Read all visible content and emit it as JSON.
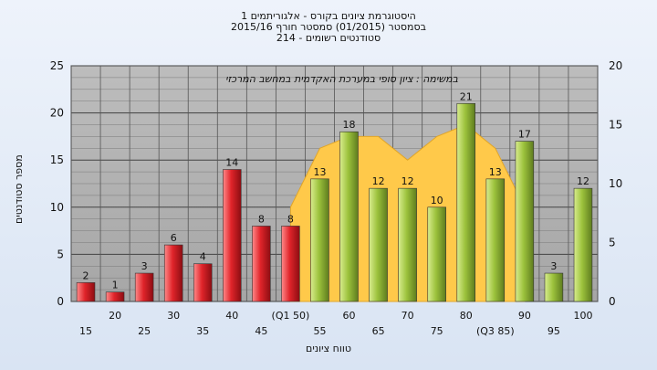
{
  "chart_data": {
    "type": "bar",
    "title_lines": [
      "היסטוגרמת ציונים בקורס - אלגוריתמים 1",
      "בסמסטר  (01/2015)  סמסטר חורף  2015/16",
      "סטודנטים רשומים - 214"
    ],
    "annotation": "במשימה : ציון סופי במערכת האקדמית במחשב המרכזי",
    "ylabel": "מספר סטודנטים",
    "xlabel": "טווח ציונים",
    "ylim": [
      0,
      25
    ],
    "y2lim": [
      0,
      20
    ],
    "y_ticks": [
      0,
      5,
      10,
      15,
      20,
      25
    ],
    "y2_ticks": [
      0,
      5,
      10,
      15,
      20
    ],
    "grid": true,
    "categories": [
      "15",
      "20",
      "25",
      "30",
      "35",
      "40",
      "45",
      "(Q1 50)",
      "55",
      "60",
      "65",
      "70",
      "75",
      "80",
      "(Q3 85)",
      "90",
      "95",
      "100"
    ],
    "values": [
      2,
      1,
      3,
      6,
      4,
      14,
      8,
      8,
      13,
      18,
      12,
      12,
      10,
      21,
      13,
      17,
      3,
      12
    ],
    "value_labels": [
      "2",
      "1",
      "3",
      "6",
      "4",
      "14",
      "8",
      "8",
      "13",
      "18",
      "12",
      "12",
      "10",
      "21",
      "13",
      "17",
      "3",
      "12"
    ],
    "bar_colors": [
      "red",
      "red",
      "red",
      "red",
      "red",
      "red",
      "red",
      "red",
      "green",
      "green",
      "green",
      "green",
      "green",
      "green",
      "green",
      "green",
      "green",
      "green"
    ],
    "area": {
      "name": "",
      "x_from_index": 7,
      "x_to_index": 15,
      "values": [
        8,
        13,
        14,
        14,
        12,
        14,
        15,
        13,
        8
      ]
    },
    "colors": {
      "bar_red": "#e0242a",
      "bar_green": "#9cc23c",
      "area": "#ffc94a",
      "plot_bg": "#b0b0b0",
      "grid": "#444444"
    }
  }
}
